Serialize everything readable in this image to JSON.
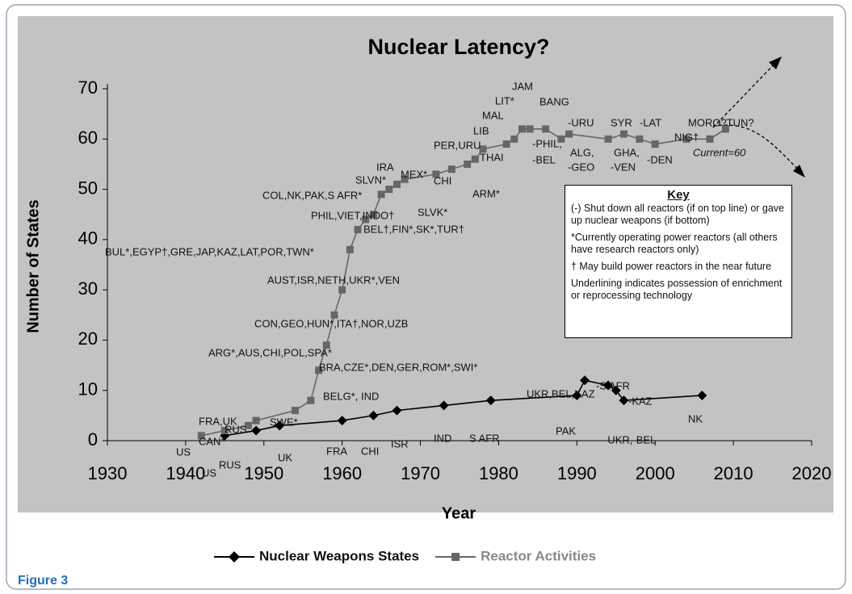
{
  "chart_data": {
    "type": "line",
    "title": "Nuclear Latency?",
    "x_label": "Year",
    "y_label": "Number of States",
    "xlim": [
      1930,
      2020
    ],
    "xticks": [
      1930,
      1940,
      1950,
      1960,
      1970,
      1980,
      1990,
      2000,
      2010,
      2020
    ],
    "ylim": [
      0,
      70
    ],
    "yticks": [
      0,
      10,
      20,
      30,
      40,
      50,
      60,
      70
    ],
    "grid": false,
    "legend": "bottom",
    "series": [
      {
        "name": "Nuclear Weapons States",
        "color": "#000000",
        "marker": "diamond",
        "x": [
          1945,
          1949,
          1952,
          1960,
          1964,
          1967,
          1973,
          1979,
          1990,
          1991,
          1994,
          1995,
          1996,
          2006
        ],
        "values": [
          1,
          2,
          3,
          4,
          5,
          6,
          7,
          8,
          9,
          12,
          11,
          10,
          8,
          9
        ]
      },
      {
        "name": "Reactor Activities",
        "color": "#666666",
        "marker": "square",
        "x": [
          1942,
          1945,
          1948,
          1949,
          1954,
          1956,
          1957,
          1958,
          1959,
          1960,
          1961,
          1962,
          1963,
          1964,
          1965,
          1966,
          1967,
          1968,
          1972,
          1974,
          1976,
          1977,
          1978,
          1981,
          1982,
          1983,
          1984,
          1986,
          1988,
          1989,
          1994,
          1996,
          1998,
          2000,
          2004,
          2007,
          2009
        ],
        "values": [
          1,
          2,
          3,
          4,
          6,
          8,
          14,
          19,
          25,
          30,
          38,
          42,
          44,
          45,
          49,
          50,
          51,
          52,
          53,
          54,
          55,
          56,
          58,
          59,
          60,
          62,
          62,
          62,
          60,
          61,
          60,
          61,
          60,
          59,
          60,
          60,
          62
        ]
      }
    ],
    "annotations": [
      "US",
      "CAN*",
      "FRA,UK",
      "RUS",
      "SWE*",
      "BELG*, IND",
      "BRA,CZE*,DEN,GER,ROM*,SWI*",
      "ARG*,AUS,CHI,POL,SPA*",
      "CON,GEO,HUN*,ITA†,NOR,UZB",
      "AUST,ISR,NETH,UKR*,VEN",
      "BUL*,EGYP†,GRE,JAP,KAZ,LAT,POR,TWN*",
      "BEL†,FIN*,SK*,TUR†",
      "PHIL,VIET,INDO†",
      "COL,NK,PAK,S AFR*",
      "SLVN*",
      "IRA",
      "MEX*",
      "SLVK*",
      "CHI",
      "ARM*",
      "THAI",
      "PER,URU",
      "LIB",
      "MAL",
      "LIT*",
      "JAM",
      "BANG",
      "-PHIL,",
      "-BEL",
      "-URU",
      "ALG,",
      "-GEO",
      "SYR",
      "GHA,",
      "-VEN",
      "-LAT",
      "-DEN",
      "NIG†",
      "MORO?TUN?",
      "Current=60",
      "US",
      "RUS",
      "UK",
      "FRA",
      "CHI",
      "ISR",
      "IND",
      "S AFR",
      "PAK",
      "UKR,BEL,KAZ",
      "-S AFR",
      "-KAZ",
      "-UKR,-BEL",
      "NK"
    ],
    "key": {
      "title": "Key",
      "items": [
        "(-) Shut down all reactors (if on top line) or gave up nuclear weapons (if bottom)",
        "*Currently operating power reactors (all others have research reactors only)",
        "† May build power reactors in the near future",
        "Underlining indicates possession of enrichment or reprocessing technology"
      ]
    },
    "caption": "Figure 3"
  }
}
